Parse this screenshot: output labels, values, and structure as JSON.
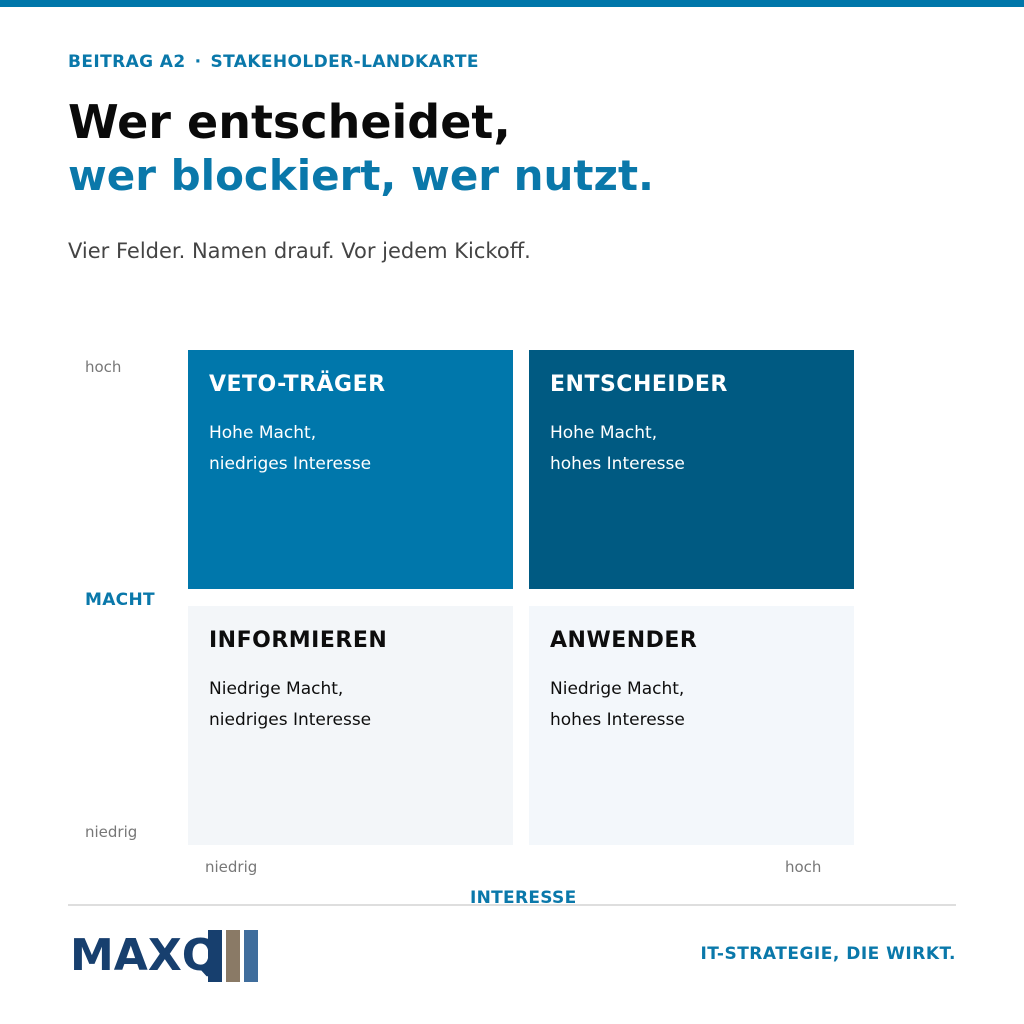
{
  "header": {
    "eyebrow_left": "BEITRAG A2",
    "eyebrow_sep": "·",
    "eyebrow_right": "STAKEHOLDER-LANDKARTE",
    "title_line1": "Wer entscheidet,",
    "title_line2": "wer blockiert, wer nutzt.",
    "subtitle": "Vier Felder. Namen drauf. Vor jedem Kickoff."
  },
  "matrix": {
    "y_axis": {
      "label": "MACHT",
      "high": "hoch",
      "low": "niedrig"
    },
    "x_axis": {
      "label": "INTERESSE",
      "low": "niedrig",
      "high": "hoch"
    },
    "quadrants": {
      "veto": {
        "title": "VETO-TRÄGER",
        "line1": "Hohe Macht,",
        "line2": "niedriges Interesse",
        "color": "#0077ab"
      },
      "entscheider": {
        "title": "ENTSCHEIDER",
        "line1": "Hohe Macht,",
        "line2": "hohes Interesse",
        "color": "#005a82"
      },
      "informieren": {
        "title": "INFORMIEREN",
        "line1": "Niedrige Macht,",
        "line2": "niedriges Interesse",
        "color": "#f3f6f9"
      },
      "anwender": {
        "title": "ANWENDER",
        "line1": "Niedrige Macht,",
        "line2": "hohes Interesse",
        "color": "#f3f7fb"
      }
    }
  },
  "footer": {
    "logo_text": "MAXQ",
    "logo_bar_colors": [
      "#173f6e",
      "#8a7a66",
      "#3f6d9c"
    ],
    "tagline": "IT-STRATEGIE, DIE WIRKT."
  },
  "colors": {
    "accent": "#0a78aa",
    "topbar": "#0077aa"
  }
}
